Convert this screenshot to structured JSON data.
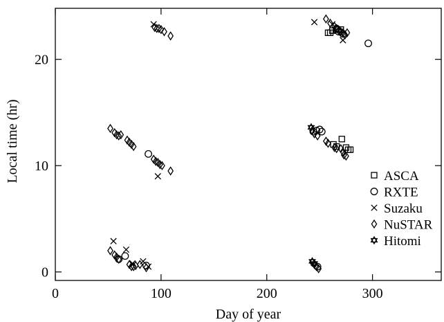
{
  "chart_data": {
    "type": "scatter",
    "xlabel": "Day of year",
    "ylabel": "Local time (hr)",
    "xlim": [
      0,
      365
    ],
    "ylim": [
      -0.8,
      24.8
    ],
    "xticks": [
      0,
      100,
      200,
      300
    ],
    "yticks": [
      0,
      10,
      20
    ],
    "grid": false,
    "legend_position": "right",
    "series": [
      {
        "name": "ASCA",
        "marker": "square",
        "points": [
          [
            258,
            22.5
          ],
          [
            260,
            22.5
          ],
          [
            262,
            22.7
          ],
          [
            266,
            22.8
          ],
          [
            270,
            22.8
          ],
          [
            263,
            12.0
          ],
          [
            266,
            11.8
          ],
          [
            271,
            12.5
          ],
          [
            275,
            11.7
          ],
          [
            277,
            11.5
          ],
          [
            279,
            11.5
          ]
        ]
      },
      {
        "name": "RXTE",
        "marker": "circle",
        "points": [
          [
            296,
            21.5
          ],
          [
            266,
            22.9
          ],
          [
            268,
            22.6
          ],
          [
            272,
            22.4
          ],
          [
            244,
            13.2
          ],
          [
            247,
            13.3
          ],
          [
            250,
            13.4
          ],
          [
            252,
            13.2
          ],
          [
            88,
            11.1
          ],
          [
            66,
            1.5
          ],
          [
            60,
            1.2
          ],
          [
            86,
            0.6
          ],
          [
            248,
            0.5
          ]
        ]
      },
      {
        "name": "Suzaku",
        "marker": "x",
        "points": [
          [
            93,
            23.3
          ],
          [
            245,
            23.5
          ],
          [
            262,
            23.3
          ],
          [
            272,
            21.8
          ],
          [
            97,
            9.0
          ],
          [
            55,
            2.9
          ],
          [
            67,
            2.1
          ],
          [
            83,
            1.0
          ],
          [
            88,
            0.5
          ],
          [
            73,
            0.8
          ]
        ]
      },
      {
        "name": "NuSTAR",
        "marker": "diamond",
        "points": [
          [
            94,
            23.0
          ],
          [
            96,
            22.9
          ],
          [
            98,
            22.9
          ],
          [
            100,
            22.8
          ],
          [
            103,
            22.6
          ],
          [
            109,
            22.2
          ],
          [
            256,
            23.8
          ],
          [
            260,
            23.4
          ],
          [
            264,
            23.1
          ],
          [
            266,
            22.9
          ],
          [
            268,
            22.7
          ],
          [
            270,
            22.6
          ],
          [
            272,
            22.5
          ],
          [
            274,
            22.3
          ],
          [
            276,
            22.5
          ],
          [
            52,
            13.5
          ],
          [
            56,
            13.1
          ],
          [
            58,
            12.9
          ],
          [
            60,
            12.8
          ],
          [
            62,
            12.9
          ],
          [
            68,
            12.4
          ],
          [
            70,
            12.2
          ],
          [
            72,
            12.0
          ],
          [
            74,
            11.8
          ],
          [
            93,
            10.6
          ],
          [
            95,
            10.4
          ],
          [
            97,
            10.3
          ],
          [
            99,
            10.1
          ],
          [
            101,
            10.0
          ],
          [
            109,
            9.5
          ],
          [
            243,
            13.3
          ],
          [
            245,
            13.0
          ],
          [
            248,
            12.8
          ],
          [
            256,
            12.3
          ],
          [
            258,
            12.1
          ],
          [
            264,
            11.7
          ],
          [
            266,
            11.6
          ],
          [
            270,
            11.6
          ],
          [
            272,
            11.3
          ],
          [
            273,
            11.0
          ],
          [
            275,
            10.9
          ],
          [
            52,
            2.0
          ],
          [
            56,
            1.6
          ],
          [
            58,
            1.4
          ],
          [
            60,
            1.2
          ],
          [
            70,
            0.7
          ],
          [
            72,
            0.5
          ],
          [
            74,
            0.5
          ],
          [
            76,
            0.6
          ],
          [
            80,
            0.7
          ],
          [
            86,
            0.4
          ],
          [
            243,
            0.9
          ],
          [
            245,
            0.7
          ],
          [
            247,
            0.5
          ],
          [
            249,
            0.3
          ]
        ]
      },
      {
        "name": "Hitomi",
        "marker": "star",
        "points": [
          [
            242,
            13.6
          ],
          [
            243,
            1.0
          ],
          [
            245,
            0.8
          ]
        ]
      }
    ]
  }
}
